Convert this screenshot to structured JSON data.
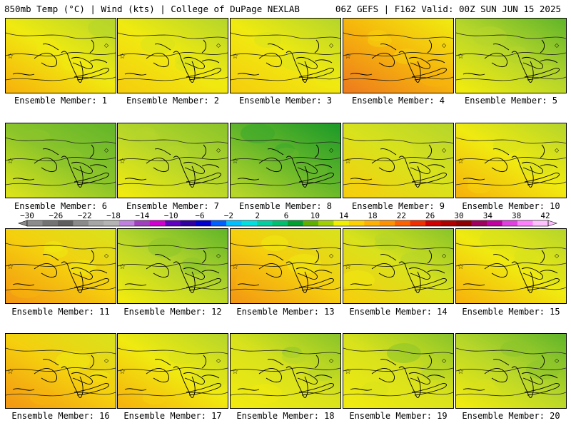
{
  "header": {
    "left": "850mb Temp (°C) | Wind (kts) | College of DuPage NEXLAB",
    "right": "06Z GEFS | F162 Valid: 00Z SUN JUN 15 2025"
  },
  "member_label_prefix": "Ensemble Member: ",
  "members": [
    1,
    2,
    3,
    4,
    5,
    6,
    7,
    8,
    9,
    10,
    11,
    12,
    13,
    14,
    15,
    16,
    17,
    18,
    19,
    20
  ],
  "member_warmth": [
    0.62,
    0.55,
    0.55,
    0.85,
    0.35,
    0.22,
    0.38,
    0.05,
    0.5,
    0.6,
    0.7,
    0.3,
    0.75,
    0.45,
    0.6,
    0.78,
    0.62,
    0.4,
    0.4,
    0.3
  ],
  "colorbar": {
    "labels": [
      "−30",
      "−26",
      "−22",
      "−18",
      "−14",
      "−10",
      "−6",
      "−2",
      "2",
      "6",
      "10",
      "14",
      "18",
      "22",
      "26",
      "30",
      "34",
      "38",
      "42"
    ],
    "colors": [
      "#8c8c8c",
      "#737373",
      "#5e5e5e",
      "#8a8a8a",
      "#a6a6a6",
      "#b4b4b4",
      "#c080e0",
      "#a040c0",
      "#d000d0",
      "#6000c0",
      "#3000a0",
      "#0000d0",
      "#0060ff",
      "#00c0ff",
      "#00e0e0",
      "#00d0a0",
      "#00c070",
      "#00a030",
      "#60b000",
      "#a0d000",
      "#f0f000",
      "#ffd000",
      "#ffb000",
      "#ff9000",
      "#ff6000",
      "#f03000",
      "#d00000",
      "#b00000",
      "#900000",
      "#a00060",
      "#c000a0",
      "#e040e0",
      "#ff80ff",
      "#ffc0ff"
    ]
  }
}
